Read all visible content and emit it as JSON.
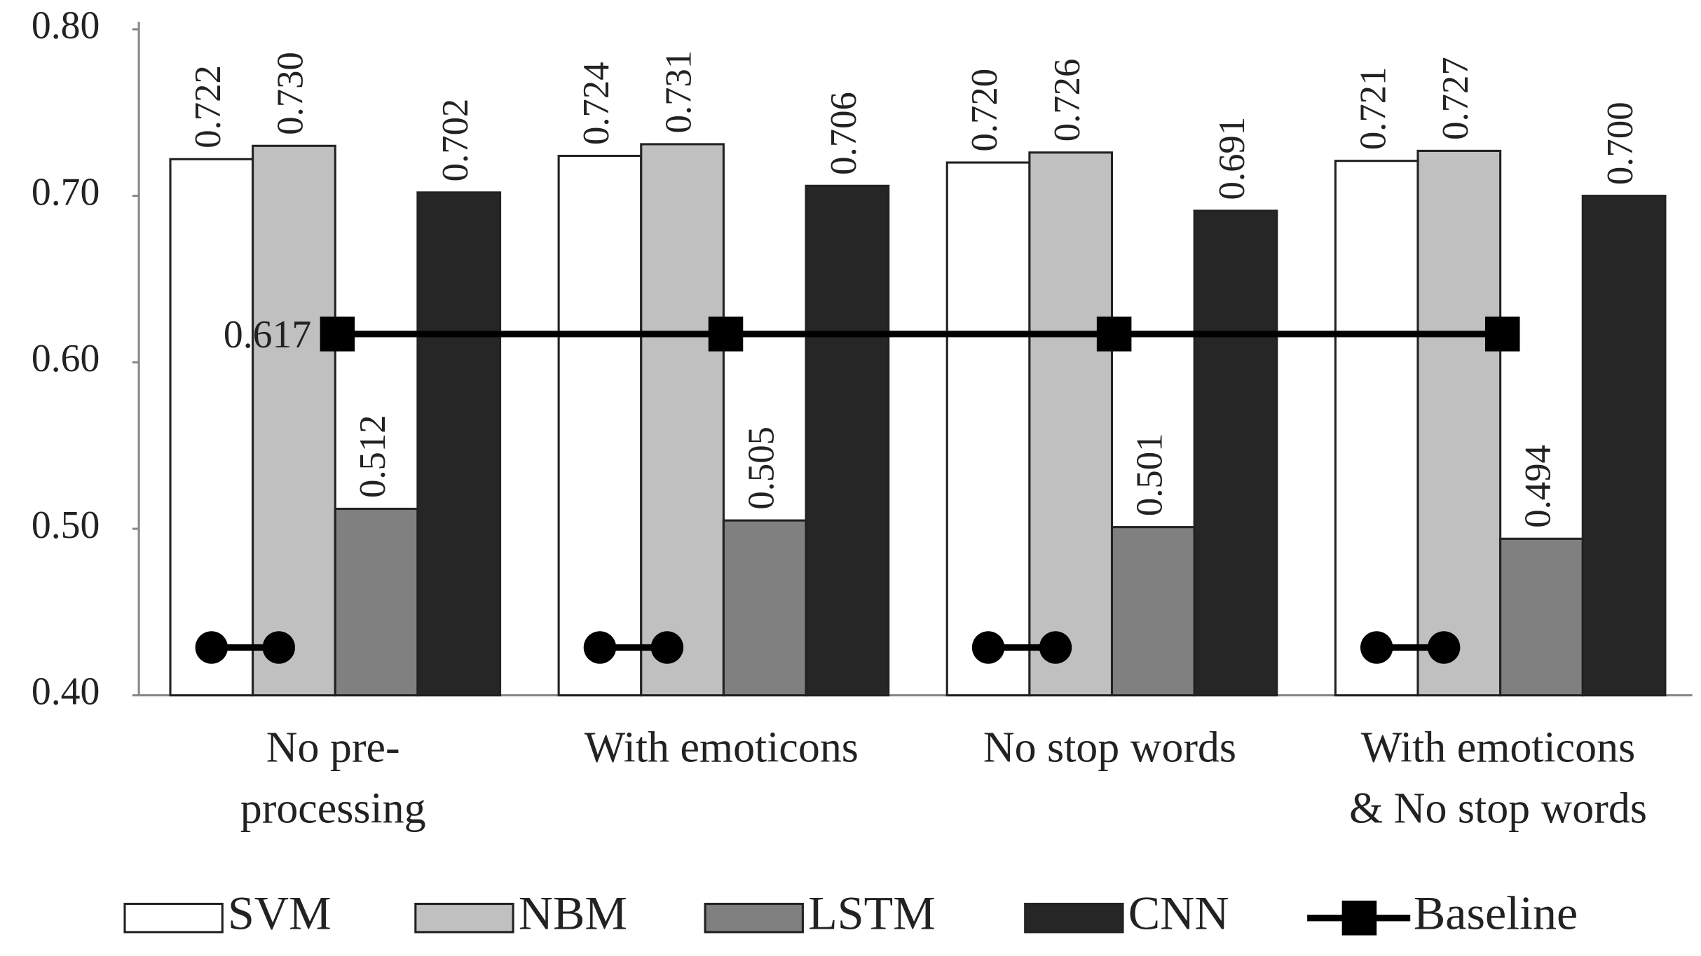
{
  "chart_data": {
    "type": "bar",
    "categories": [
      "No pre-\nprocessing",
      "With emoticons",
      "No stop words",
      "With emoticons\n& No stop words"
    ],
    "series": [
      {
        "name": "SVM",
        "color": "#ffffff",
        "values": [
          0.722,
          0.724,
          0.72,
          0.721
        ],
        "value_labels": [
          "0.722",
          "0.724",
          "0.720",
          "0.721"
        ]
      },
      {
        "name": "NBM",
        "color": "#c0c0c0",
        "values": [
          0.73,
          0.731,
          0.726,
          0.727
        ],
        "value_labels": [
          "0.730",
          "0.731",
          "0.726",
          "0.727"
        ]
      },
      {
        "name": "LSTM",
        "color": "#808080",
        "values": [
          0.512,
          0.505,
          0.501,
          0.494
        ],
        "value_labels": [
          "0.512",
          "0.505",
          "0.501",
          "0.494"
        ]
      },
      {
        "name": "CNN",
        "color": "#262626",
        "values": [
          0.702,
          0.706,
          0.691,
          0.7
        ],
        "value_labels": [
          "0.702",
          "0.706",
          "0.691",
          "0.700"
        ]
      },
      {
        "name": "Baseline",
        "type": "line",
        "color": "#000000",
        "values": [
          0.617,
          0.617,
          0.617,
          0.617
        ],
        "value_labels": [
          "0.617",
          null,
          null,
          null
        ]
      }
    ],
    "ylim": [
      0.4,
      0.8
    ],
    "yticks": [
      {
        "value": 0.4,
        "label": "0.40"
      },
      {
        "value": 0.5,
        "label": "0.50"
      },
      {
        "value": 0.6,
        "label": "0.60"
      },
      {
        "value": 0.7,
        "label": "0.70"
      },
      {
        "value": 0.8,
        "label": "0.80"
      }
    ],
    "grid": false,
    "legend": "bottom"
  }
}
